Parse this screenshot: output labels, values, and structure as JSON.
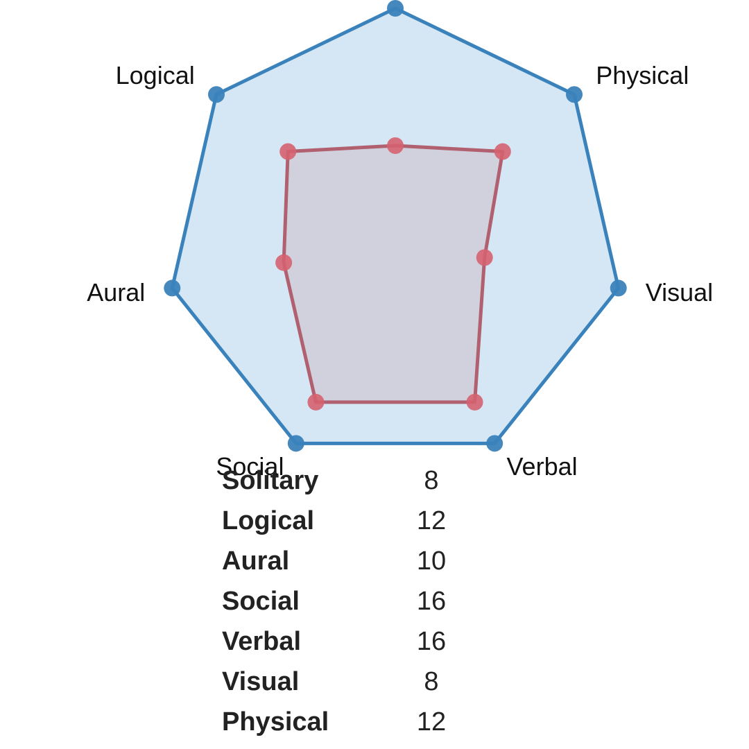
{
  "chart_data": {
    "type": "radar",
    "axes": [
      "Solitary",
      "Physical",
      "Visual",
      "Verbal",
      "Social",
      "Aural",
      "Logical"
    ],
    "axis_range": [
      0,
      20
    ],
    "rings": 5,
    "series": [
      {
        "values": [
          20,
          20,
          20,
          20,
          20,
          20,
          20
        ],
        "color": "#3a82bb",
        "fill": "#d5e6f4"
      },
      {
        "values": [
          8,
          12,
          8,
          16,
          16,
          10,
          12
        ],
        "color": "#d66270",
        "fill": "#cfc9d6"
      }
    ],
    "table": [
      {
        "name": "Solitary",
        "score": "8"
      },
      {
        "name": "Logical",
        "score": "12"
      },
      {
        "name": "Aural",
        "score": "10"
      },
      {
        "name": "Social",
        "score": "16"
      },
      {
        "name": "Verbal",
        "score": "16"
      },
      {
        "name": "Visual",
        "score": "8"
      },
      {
        "name": "Physical",
        "score": "12"
      }
    ]
  }
}
